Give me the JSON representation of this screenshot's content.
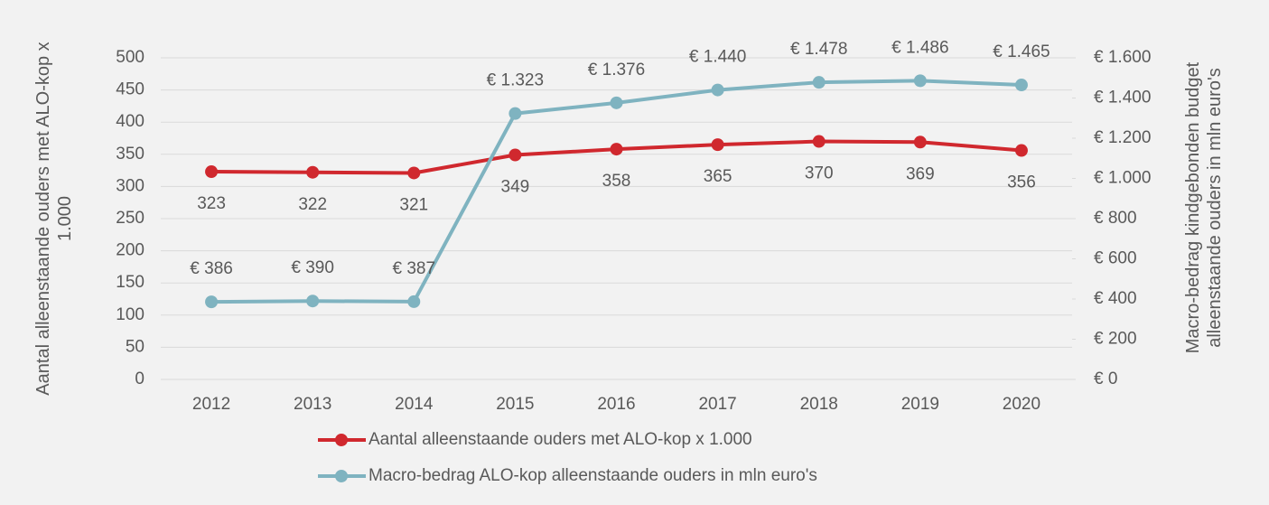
{
  "chart_data": {
    "type": "line",
    "categories": [
      "2012",
      "2013",
      "2014",
      "2015",
      "2016",
      "2017",
      "2018",
      "2019",
      "2020"
    ],
    "ylabel": "Aantal alleenstaande ouders met ALO-kop x 1.000",
    "y2label": "Macro-bedrag kindgebonden budget alleenstaande ouders in mln euro's",
    "ylim": [
      0,
      500
    ],
    "yticks": [
      0,
      50,
      100,
      150,
      200,
      250,
      300,
      350,
      400,
      450,
      500
    ],
    "y2lim": [
      0,
      1600
    ],
    "y2ticks": [
      {
        "value": 0,
        "label": "€ 0"
      },
      {
        "value": 200,
        "label": "€ 200"
      },
      {
        "value": 400,
        "label": "€ 400"
      },
      {
        "value": 600,
        "label": "€ 600"
      },
      {
        "value": 800,
        "label": "€ 800"
      },
      {
        "value": 1000,
        "label": "€ 1.000"
      },
      {
        "value": 1200,
        "label": "€ 1.200"
      },
      {
        "value": 1400,
        "label": "€ 1.400"
      },
      {
        "value": 1600,
        "label": "€ 1.600"
      }
    ],
    "grid": true,
    "legend": "bottom",
    "series": [
      {
        "name": "Aantal alleenstaande ouders met ALO-kop x 1.000",
        "color": "#d0282e",
        "axis": "y",
        "values": [
          323,
          322,
          321,
          349,
          358,
          365,
          370,
          369,
          356
        ]
      },
      {
        "name": "Macro-bedrag ALO-kop alleenstaande ouders in mln euro's",
        "color": "#7fb3c0",
        "axis": "y2",
        "values": [
          386,
          390,
          387,
          1323,
          1376,
          1440,
          1478,
          1486,
          1465
        ],
        "value_labels": [
          "€ 386",
          "€ 390",
          "€ 387",
          "€ 1.323",
          "€ 1.376",
          "€ 1.440",
          "€ 1.478",
          "€ 1.486",
          "€ 1.465"
        ]
      }
    ]
  }
}
